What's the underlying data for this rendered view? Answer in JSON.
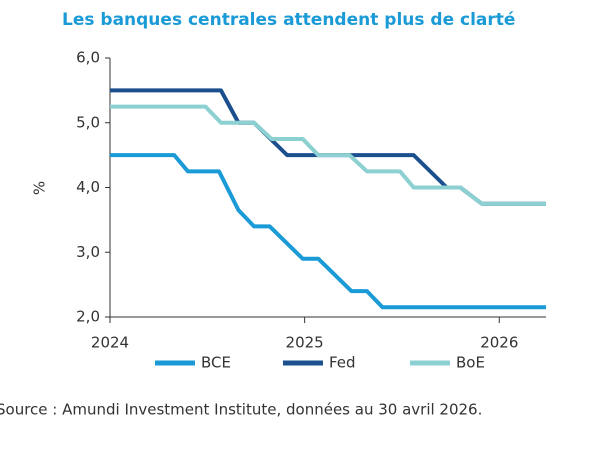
{
  "chart_data": {
    "type": "line",
    "title": "Les banques centrales attendent plus de clarté",
    "y_label": "%",
    "source": "Source : Amundi Investment Institute, données au 30 avril 2026.",
    "xlim": [
      2024,
      2026.24
    ],
    "xticks": [
      2024,
      2025,
      2026
    ],
    "ylim": [
      2,
      6
    ],
    "yticks": [
      {
        "value": 2,
        "label": "2,0"
      },
      {
        "value": 3,
        "label": "3,0"
      },
      {
        "value": 4,
        "label": "4,0"
      },
      {
        "value": 5,
        "label": "5,0"
      },
      {
        "value": 6,
        "label": "6,0"
      }
    ],
    "legend": "bottom",
    "series": [
      {
        "name": "BCE",
        "color": "#1a9ad6",
        "x": [
          2024,
          2024.33,
          2024.4,
          2024.56,
          2024.66,
          2024.74,
          2024.82,
          2024.99,
          2025.07,
          2025.24,
          2025.32,
          2025.4,
          2026.24
        ],
        "values": [
          4.5,
          4.5,
          4.25,
          4.25,
          3.65,
          3.4,
          3.4,
          2.9,
          2.9,
          2.4,
          2.4,
          2.15,
          2.15
        ]
      },
      {
        "name": "Fed",
        "color": "#1b4f8e",
        "x": [
          2024,
          2024.57,
          2024.66,
          2024.74,
          2024.91,
          2025.56,
          2025.73,
          2025.8,
          2025.91,
          2026.24
        ],
        "values": [
          5.5,
          5.5,
          5.0,
          5.0,
          4.5,
          4.5,
          4.0,
          4.0,
          3.75,
          3.75
        ]
      },
      {
        "name": "BoE",
        "color": "#8dd0d1",
        "x": [
          2024,
          2024.49,
          2024.57,
          2024.74,
          2024.83,
          2024.99,
          2025.07,
          2025.23,
          2025.32,
          2025.49,
          2025.56,
          2025.8,
          2025.91,
          2026.24
        ],
        "values": [
          5.25,
          5.25,
          5.0,
          5.0,
          4.75,
          4.75,
          4.5,
          4.5,
          4.25,
          4.25,
          4.0,
          4.0,
          3.75,
          3.75
        ]
      }
    ]
  }
}
